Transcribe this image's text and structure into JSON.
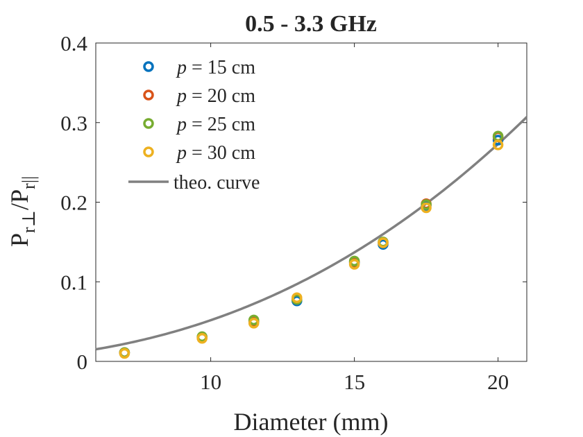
{
  "chart_data": {
    "type": "scatter",
    "title": "0.5 - 3.3 GHz",
    "xlabel": "Diameter (mm)",
    "ylabel": {
      "base1": "P",
      "sub1": "r⊥",
      "slash": "/",
      "base2": "P",
      "sub2": "r||"
    },
    "xlim": [
      6,
      21
    ],
    "ylim": [
      0,
      0.4
    ],
    "xticks": [
      10,
      15,
      20
    ],
    "xtick_labels": [
      "10",
      "15",
      "20"
    ],
    "yticks": [
      0,
      0.1,
      0.2,
      0.3,
      0.4
    ],
    "ytick_labels": [
      "0",
      "0.1",
      "0.2",
      "0.3",
      "0.4"
    ],
    "grid": false,
    "legend_position": "top-left",
    "series": [
      {
        "name_italic": "p",
        "name_rest": " = 15 cm",
        "color": "#0072BD",
        "x": [
          7,
          9.7,
          11.5,
          13,
          15,
          16,
          17.5,
          20
        ],
        "y": [
          0.011,
          0.03,
          0.05,
          0.076,
          0.124,
          0.147,
          0.196,
          0.278
        ]
      },
      {
        "name_italic": "p",
        "name_rest": " = 20 cm",
        "color": "#D95319",
        "x": [
          7,
          9.7,
          11.5,
          13,
          15,
          16,
          17.5,
          20
        ],
        "y": [
          0.011,
          0.03,
          0.051,
          0.078,
          0.125,
          0.149,
          0.198,
          0.282
        ]
      },
      {
        "name_italic": "p",
        "name_rest": " = 25 cm",
        "color": "#77AC30",
        "x": [
          7,
          9.7,
          11.5,
          13,
          15,
          16,
          17.5,
          20
        ],
        "y": [
          0.011,
          0.031,
          0.052,
          0.078,
          0.126,
          0.15,
          0.197,
          0.283
        ]
      },
      {
        "name_italic": "p",
        "name_rest": " = 30 cm",
        "color": "#EDB120",
        "x": [
          7,
          9.7,
          11.5,
          13,
          15,
          16,
          17.5,
          20
        ],
        "y": [
          0.01,
          0.029,
          0.048,
          0.08,
          0.122,
          0.149,
          0.193,
          0.272
        ]
      }
    ],
    "theory_curve": {
      "name": "theo. curve",
      "color": "#808080",
      "formula": "k * x^2.4",
      "k": 0.000206,
      "exponent": 2.4,
      "x_start": 6,
      "x_end": 21
    }
  }
}
